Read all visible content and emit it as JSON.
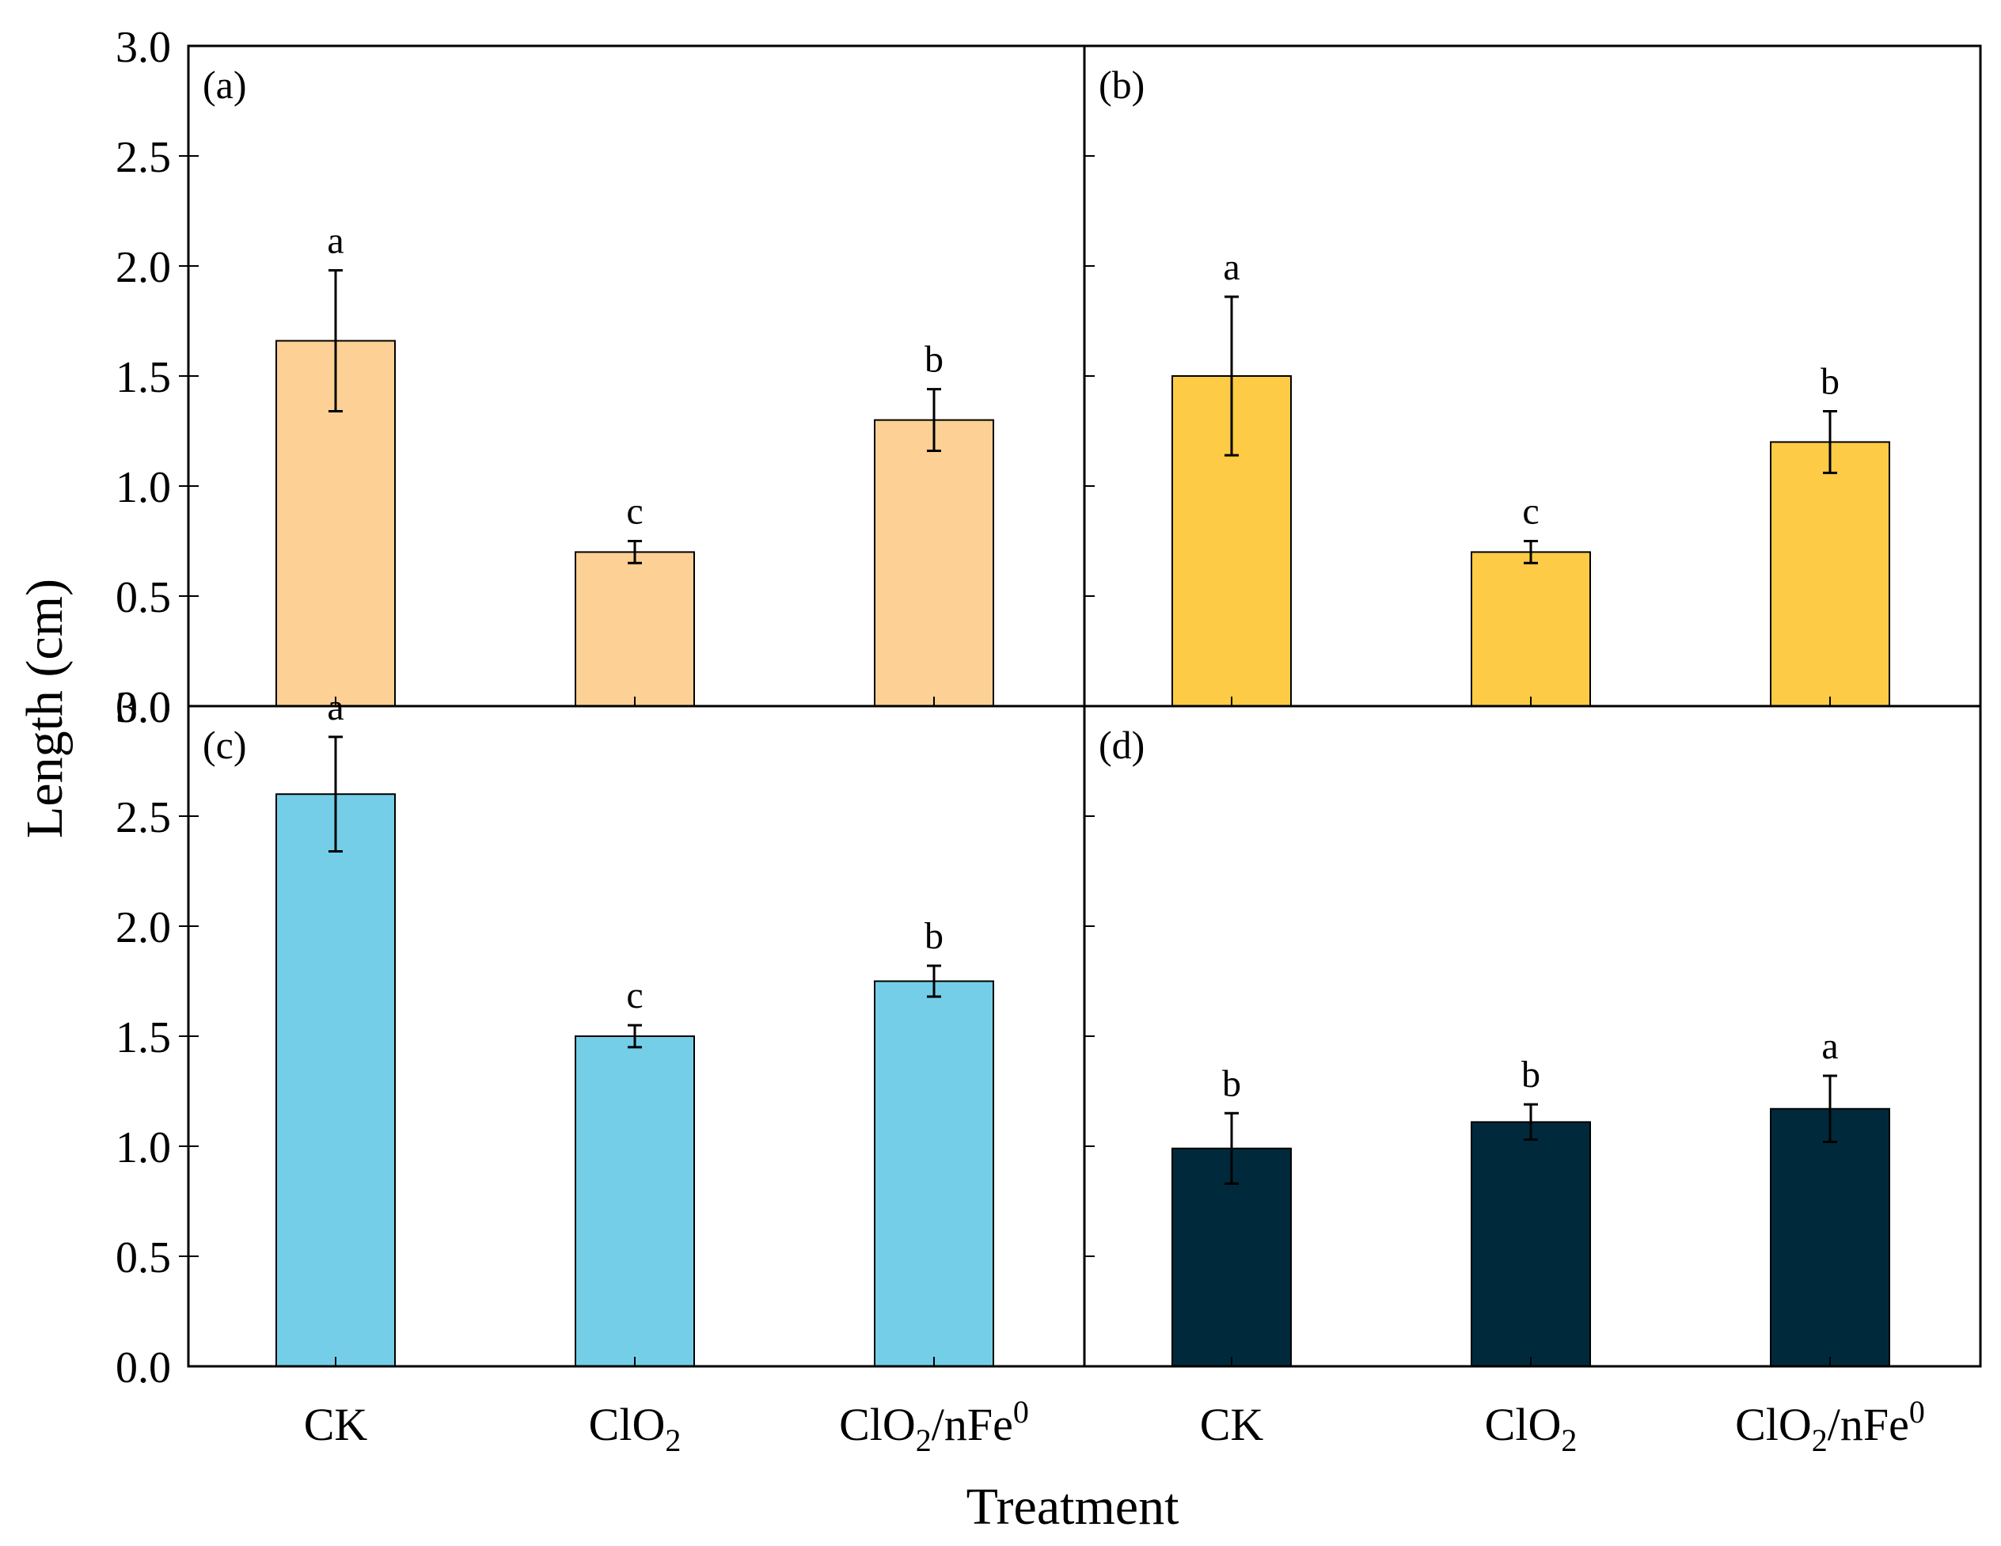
{
  "chart_data": {
    "type": "bar",
    "layout": "2x2 panels with shared axes",
    "xlabel": "Treatment",
    "ylabel": "Length (cm)",
    "ylim": [
      0,
      3.0
    ],
    "yticks": [
      "0.0",
      "0.5",
      "1.0",
      "1.5",
      "2.0",
      "2.5",
      "3.0"
    ],
    "categories": [
      {
        "name": "CK",
        "base": "CK",
        "sub": "",
        "mid": "",
        "sup": ""
      },
      {
        "name": "ClO2",
        "base": "ClO",
        "sub": "2",
        "mid": "",
        "sup": ""
      },
      {
        "name": "ClO2/nFe0",
        "base": "ClO",
        "sub": "2",
        "mid": "/nFe",
        "sup": "0"
      }
    ],
    "panels": [
      {
        "label": "(a)",
        "color": "#fdd095",
        "values": [
          1.66,
          0.7,
          1.3
        ],
        "errors": [
          0.32,
          0.05,
          0.14
        ],
        "letters": [
          "a",
          "c",
          "b"
        ]
      },
      {
        "label": "(b)",
        "color": "#fdcb45",
        "values": [
          1.5,
          0.7,
          1.2
        ],
        "errors": [
          0.36,
          0.05,
          0.14
        ],
        "letters": [
          "a",
          "c",
          "b"
        ]
      },
      {
        "label": "(c)",
        "color": "#75cee7",
        "values": [
          2.6,
          1.5,
          1.75
        ],
        "errors": [
          0.26,
          0.05,
          0.07
        ],
        "letters": [
          "a",
          "c",
          "b"
        ]
      },
      {
        "label": "(d)",
        "color": "#002a3c",
        "values": [
          0.99,
          1.11,
          1.17
        ],
        "errors": [
          0.16,
          0.08,
          0.15
        ],
        "letters": [
          "b",
          "b",
          "a"
        ]
      }
    ]
  }
}
